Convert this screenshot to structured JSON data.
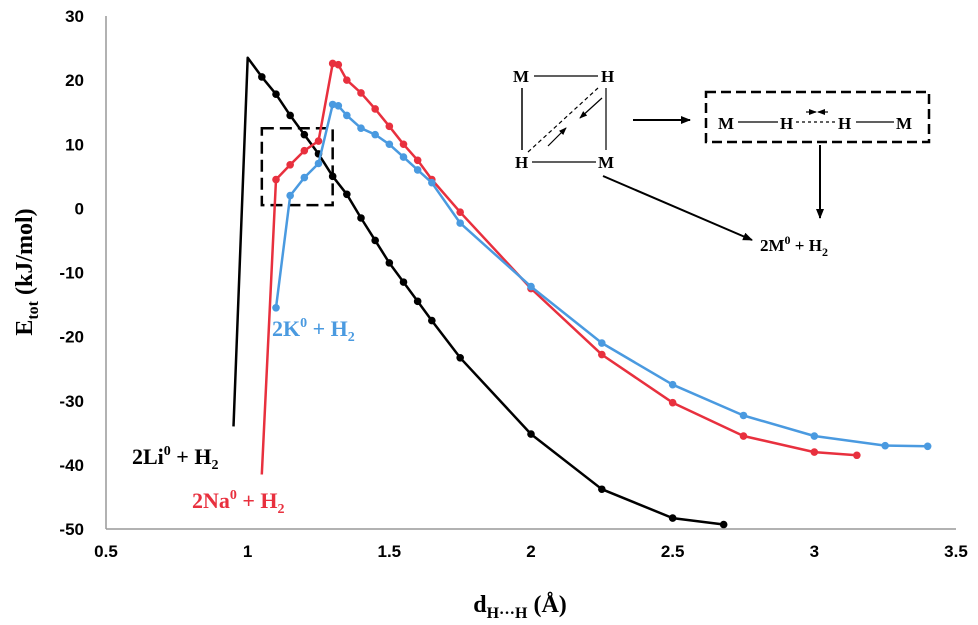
{
  "chart_data": {
    "type": "line",
    "xlabel": "d",
    "xlabel_sub": "H···H",
    "xlabel_unit": "(Å)",
    "ylabel": "E",
    "ylabel_sub": "tot",
    "ylabel_unit": "(kJ/mol)",
    "xlim": [
      0.5,
      3.5
    ],
    "ylim": [
      -50,
      30
    ],
    "xticks": [
      0.5,
      1,
      1.5,
      2,
      2.5,
      3,
      3.5
    ],
    "xtick_labels": [
      "0.5",
      "1",
      "1.5",
      "2",
      "2.5",
      "3",
      "3.5"
    ],
    "yticks": [
      -50,
      -40,
      -30,
      -20,
      -10,
      0,
      10,
      20,
      30
    ],
    "ytick_labels": [
      "-50",
      "-40",
      "-30",
      "-20",
      "-10",
      "0",
      "10",
      "20",
      "30"
    ],
    "grid": false,
    "series": [
      {
        "name": "2Li⁰ + H₂",
        "label_main": "2Li",
        "label_sup": "0",
        "label_tail": " + H",
        "label_sub": "2",
        "color": "#000000",
        "x": [
          0.95,
          1.0,
          1.05,
          1.1,
          1.15,
          1.2,
          1.25,
          1.3,
          1.35,
          1.4,
          1.45,
          1.5,
          1.55,
          1.6,
          1.65,
          1.75,
          2.0,
          2.25,
          2.5,
          2.68
        ],
        "y": [
          -34,
          23.5,
          20.5,
          17.8,
          14.5,
          11.5,
          8.5,
          5.0,
          2.2,
          -1.5,
          -5.0,
          -8.5,
          -11.5,
          -14.5,
          -17.5,
          -23.3,
          -35.2,
          -43.8,
          -48.3,
          -49.3
        ],
        "markers": [
          false,
          false,
          true,
          true,
          true,
          true,
          true,
          true,
          true,
          true,
          true,
          true,
          true,
          true,
          true,
          true,
          true,
          true,
          true,
          true
        ]
      },
      {
        "name": "2Na⁰ + H₂",
        "label_main": "2Na",
        "label_sup": "0",
        "label_tail": " + H",
        "label_sub": "2",
        "color": "#e8303e",
        "x": [
          1.05,
          1.1,
          1.15,
          1.2,
          1.25,
          1.3,
          1.32,
          1.35,
          1.4,
          1.45,
          1.5,
          1.55,
          1.6,
          1.65,
          1.75,
          2.0,
          2.25,
          2.5,
          2.75,
          3.0,
          3.15
        ],
        "y": [
          -41.5,
          4.5,
          6.8,
          9.0,
          10.5,
          22.6,
          22.4,
          20.0,
          18.0,
          15.5,
          12.8,
          10.0,
          7.5,
          4.5,
          -0.6,
          -12.5,
          -22.8,
          -30.3,
          -35.5,
          -38.0,
          -38.5
        ],
        "markers": [
          false,
          true,
          true,
          true,
          true,
          true,
          true,
          true,
          true,
          true,
          true,
          true,
          true,
          true,
          true,
          true,
          true,
          true,
          true,
          true,
          true
        ]
      },
      {
        "name": "2K⁰ + H₂",
        "label_main": "2K",
        "label_sup": "0",
        "label_tail": " + H",
        "label_sub": "2",
        "color": "#4a9ae0",
        "x": [
          1.1,
          1.15,
          1.2,
          1.25,
          1.3,
          1.32,
          1.35,
          1.4,
          1.45,
          1.5,
          1.55,
          1.6,
          1.65,
          1.75,
          2.0,
          2.25,
          2.5,
          2.75,
          3.0,
          3.25,
          3.4
        ],
        "y": [
          -15.5,
          2.0,
          4.8,
          7.0,
          16.2,
          16.0,
          14.5,
          12.5,
          11.5,
          10.0,
          8.0,
          6.0,
          4.0,
          -2.3,
          -12.2,
          -21.0,
          -27.5,
          -32.3,
          -35.5,
          -37.0,
          -37.1
        ],
        "markers": [
          true,
          true,
          true,
          true,
          true,
          true,
          true,
          true,
          true,
          true,
          true,
          true,
          true,
          true,
          true,
          true,
          true,
          true,
          true,
          true,
          true
        ]
      }
    ],
    "highlight_box": {
      "x": [
        1.05,
        1.3
      ],
      "y": [
        0.5,
        12.5
      ]
    }
  },
  "inset": {
    "square_top_left": "M",
    "square_top_right": "H",
    "square_bottom_left": "H",
    "square_bottom_right": "M",
    "linear_atoms": [
      "M",
      "H",
      "H",
      "M"
    ],
    "product_main": "2M",
    "product_sup": "0",
    "product_tail": " + H",
    "product_sub": "2"
  }
}
